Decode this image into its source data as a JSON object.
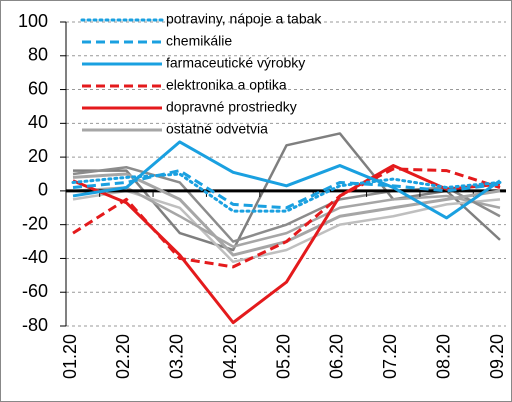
{
  "chart_data": {
    "type": "line",
    "categories": [
      "01.20",
      "02.20",
      "03.20",
      "04.20",
      "05.20",
      "06.20",
      "07.20",
      "08.20",
      "09.20"
    ],
    "ylim": [
      -80,
      100
    ],
    "yticks": [
      -80,
      -60,
      -40,
      -20,
      0,
      20,
      40,
      60,
      80,
      100
    ],
    "grid": true,
    "series": [
      {
        "name": "potraviny, nápoje a tabak",
        "color": "#1aa0e0",
        "style": "dotted",
        "values": [
          5,
          8,
          10,
          -12,
          -12,
          3,
          7,
          2,
          5
        ]
      },
      {
        "name": "chemikálie",
        "color": "#1aa0e0",
        "style": "dashed",
        "values": [
          2,
          5,
          12,
          -8,
          -10,
          5,
          3,
          0,
          4
        ]
      },
      {
        "name": "farmaceutické výrobky",
        "color": "#1aa0e0",
        "style": "solid",
        "values": [
          -3,
          2,
          29,
          11,
          3,
          15,
          2,
          -16,
          6
        ]
      },
      {
        "name": "elektronika a optika",
        "color": "#e41a1c",
        "style": "dashed",
        "values": [
          -25,
          -5,
          -40,
          -45,
          -30,
          -3,
          13,
          12,
          2
        ]
      },
      {
        "name": "dopravné prostriedky",
        "color": "#e41a1c",
        "style": "solid",
        "values": [
          6,
          -7,
          -38,
          -78,
          -54,
          -3,
          15,
          1,
          4
        ]
      },
      {
        "name": "ostatné odvetvia",
        "color": "#a6a6a6",
        "style": "solid",
        "values": [
          8,
          10,
          -5,
          -38,
          -30,
          -15,
          -10,
          -5,
          0
        ]
      }
    ],
    "unlabeled_series": [
      {
        "color": "#7f7f7f",
        "values": [
          12,
          12,
          -25,
          -35,
          27,
          34,
          -5,
          0,
          -29
        ]
      },
      {
        "color": "#bfbfbf",
        "values": [
          -5,
          0,
          -10,
          -42,
          -35,
          -20,
          -15,
          -8,
          -5
        ]
      },
      {
        "color": "#a6a6a6",
        "values": [
          0,
          2,
          -15,
          -33,
          -25,
          -10,
          -5,
          -3,
          -10
        ]
      },
      {
        "color": "#8c8c8c",
        "values": [
          10,
          14,
          5,
          -30,
          -20,
          -5,
          0,
          2,
          -15
        ]
      }
    ]
  }
}
